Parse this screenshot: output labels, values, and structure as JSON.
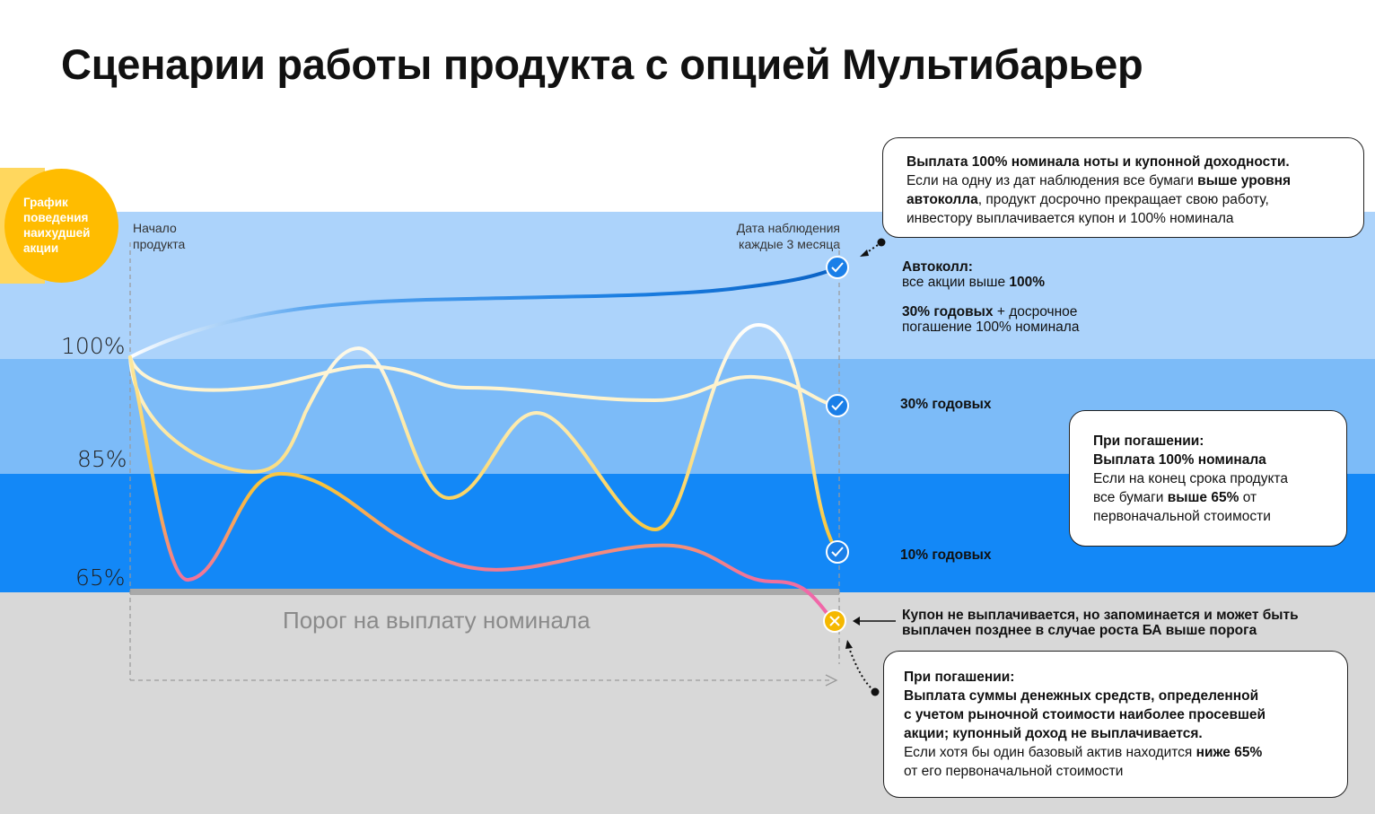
{
  "title": "Сценарии работы продукта с опцией Мультибарьер",
  "badge": {
    "text": "График поведения наихудшей акции"
  },
  "labels": {
    "start": "Начало продукта",
    "observation": "Дата наблюдения каждые 3 месяца",
    "threshold": "Порог на выплату номинала"
  },
  "levels": {
    "l100": "100%",
    "l85": "85%",
    "l65": "65%"
  },
  "right": {
    "autocall_title": "Автоколл:",
    "autocall_line_pre": "все акции выше ",
    "autocall_line_bold": "100%",
    "autocall_coupon_bold": "30% годовых",
    "autocall_coupon_rest1": " + досрочное",
    "autocall_coupon_rest2": "погашение 100% номинала",
    "mid": "30% годовых",
    "low": "10% годовых",
    "coupon_note_1": "Купон не выплачивается, но запоминается и может быть",
    "coupon_note_2": "выплачен позднее в случае роста БА выше порога"
  },
  "callout_top": {
    "bold1": "Выплата 100% номинала ноты и купонной доходности.",
    "t1": "Если на одну из дат наблюдения все бумаги ",
    "b2": "выше уровня",
    "b3": "автоколла",
    "t2": ", продукт досрочно прекращает свою работу,",
    "t3": "инвестору выплачивается купон и 100% номинала"
  },
  "callout_mid": {
    "b1": "При погашении:",
    "b2": "Выплата 100% номинала",
    "t1": "Если на конец срока продукта",
    "t2a": "все бумаги ",
    "b3": "выше 65%",
    "t2b": " от",
    "t3": "первоначальной стоимости"
  },
  "callout_bottom": {
    "b1": "При погашении:",
    "b2": "Выплата суммы денежных средств, определенной",
    "b3": "с учетом рыночной стоимости наиболее просевшей",
    "b4": "акции; купонный доход не выплачивается.",
    "t1a": "Если хотя бы один базовый актив находится ",
    "b5": "ниже 65%",
    "t2": "от его первоначальной стоимости"
  },
  "colors": {
    "band_top": "#acd3fb",
    "band_mid": "#7cbbf8",
    "band_low": "#1388f7",
    "band_gray": "#d8d8d8",
    "badge": "#ffbc00",
    "check": "#1a7fe8",
    "cross": "#f5b800"
  },
  "icons": [
    "check-icon",
    "check-icon",
    "check-icon",
    "cross-icon"
  ]
}
